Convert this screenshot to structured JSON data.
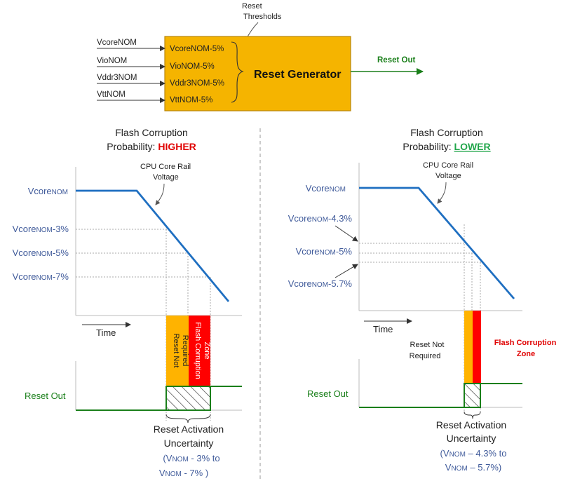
{
  "generator": {
    "top_note_line1": "Reset",
    "top_note_line2": "Thresholds",
    "inputs": [
      "VcoreNOM",
      "VioNOM",
      "Vddr3NOM",
      "VttNOM"
    ],
    "thresholds": [
      "VcoreNOM-5%",
      "VioNOM-5%",
      "Vddr3NOM-5%",
      "VttNOM-5%"
    ],
    "title": "Reset Generator",
    "output_label": "Reset Out"
  },
  "left": {
    "heading_line1": "Flash Corruption",
    "heading_line2_prefix": "Probability: ",
    "heading_line2_value": "HIGHER",
    "curve_note_line1": "CPU Core Rail",
    "curve_note_line2": "Voltage",
    "levels": [
      {
        "base": "Vcore",
        "sub": "NOM",
        "suffix": ""
      },
      {
        "base": "Vcore",
        "sub": "NOM",
        "suffix": "-3%"
      },
      {
        "base": "Vcore",
        "sub": "NOM",
        "suffix": "-5%"
      },
      {
        "base": "Vcore",
        "sub": "NOM",
        "suffix": "-7%"
      }
    ],
    "time_label": "Time",
    "zone_not_required_line1": "Reset Not",
    "zone_not_required_line2": "Required",
    "zone_corruption_line1": "Flash Corruption",
    "zone_corruption_line2": "Zone",
    "reset_out_label": "Reset Out",
    "uncertainty_line1": "Reset Activation",
    "uncertainty_line2": "Uncertainty",
    "range_line1": {
      "open": "(",
      "v": "V",
      "sub": "NOM",
      "rest": " - 3% to"
    },
    "range_line2": {
      "v": "V",
      "sub": "NOM",
      "rest": " - 7% )"
    }
  },
  "right": {
    "heading_line1": "Flash Corruption",
    "heading_line2_prefix": "Probability: ",
    "heading_line2_value": "LOWER",
    "curve_note_line1": "CPU Core Rail",
    "curve_note_line2": "Voltage",
    "levels": [
      {
        "base": "Vcore",
        "sub": "NOM",
        "suffix": ""
      },
      {
        "base": "Vcore",
        "sub": "NOM",
        "suffix": "-4.3%"
      },
      {
        "base": "Vcore",
        "sub": "NOM",
        "suffix": "-5%"
      },
      {
        "base": "Vcore",
        "sub": "NOM",
        "suffix": "-5.7%"
      }
    ],
    "time_label": "Time",
    "zone_not_required_line1": "Reset Not",
    "zone_not_required_line2": "Required",
    "zone_corruption_line1": "Flash Corruption",
    "zone_corruption_line2": "Zone",
    "reset_out_label": "Reset Out",
    "uncertainty_line1": "Reset Activation",
    "uncertainty_line2": "Uncertainty",
    "range_line1": {
      "open": "(",
      "v": "V",
      "sub": "NOM",
      "rest": " – 4.3% to"
    },
    "range_line2": {
      "v": "V",
      "sub": "NOM",
      "rest": " – 5.7%)"
    }
  },
  "colors": {
    "blue_text": "#3f5a9a",
    "curve": "#1f6fc1",
    "generator_fill": "#f5b400",
    "green": "#1a7f1a",
    "red": "#ff0000",
    "red_text": "#e00000",
    "lower_green": "#22a64b",
    "orange_zone": "#ffb300"
  }
}
